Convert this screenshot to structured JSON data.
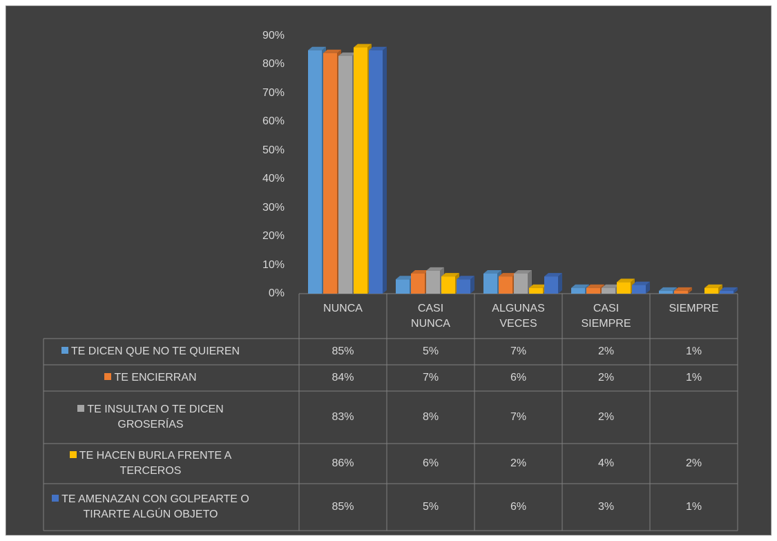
{
  "chart_data": {
    "type": "bar3d",
    "categories": [
      "NUNCA",
      "CASI NUNCA",
      "ALGUNAS VECES",
      "CASI SIEMPRE",
      "SIEMPRE"
    ],
    "series": [
      {
        "name": "TE DICEN QUE NO TE QUIEREN",
        "color": "#5b9bd5",
        "values": [
          85,
          5,
          7,
          2,
          1
        ],
        "value_labels": [
          "85%",
          "5%",
          "7%",
          "2%",
          "1%"
        ]
      },
      {
        "name": "TE ENCIERRAN",
        "color": "#ed7d31",
        "values": [
          84,
          7,
          6,
          2,
          1
        ],
        "value_labels": [
          "84%",
          "7%",
          "6%",
          "2%",
          "1%"
        ]
      },
      {
        "name": "TE INSULTAN O TE DICEN GROSERÍAS",
        "color": "#a5a5a5",
        "values": [
          83,
          8,
          7,
          2,
          null
        ],
        "value_labels": [
          "83%",
          "8%",
          "7%",
          "2%",
          null
        ]
      },
      {
        "name": "TE HACEN BURLA FRENTE A TERCEROS",
        "color": "#ffc000",
        "values": [
          86,
          6,
          2,
          4,
          2
        ],
        "value_labels": [
          "86%",
          "6%",
          "2%",
          "4%",
          "2%"
        ]
      },
      {
        "name": "TE AMENAZAN CON GOLPEARTE O TIRARTE ALGÚN OBJETO",
        "color": "#4472c4",
        "values": [
          85,
          5,
          6,
          3,
          1
        ],
        "value_labels": [
          "85%",
          "5%",
          "6%",
          "3%",
          "1%"
        ]
      }
    ],
    "ylim": [
      0,
      90
    ],
    "yticks": [
      {
        "value": 0,
        "label": "0%"
      },
      {
        "value": 10,
        "label": "10%"
      },
      {
        "value": 20,
        "label": "20%"
      },
      {
        "value": 30,
        "label": "30%"
      },
      {
        "value": 40,
        "label": "40%"
      },
      {
        "value": 50,
        "label": "50%"
      },
      {
        "value": 60,
        "label": "60%"
      },
      {
        "value": 70,
        "label": "70%"
      },
      {
        "value": 80,
        "label": "80%"
      },
      {
        "value": 90,
        "label": "90%"
      }
    ],
    "grid": false,
    "data_table": true
  }
}
